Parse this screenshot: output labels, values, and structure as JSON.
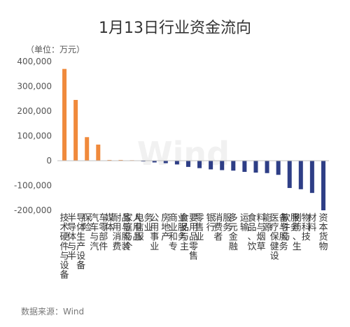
{
  "chart_data": {
    "type": "bar",
    "title": "1月13日行业资金流向",
    "unit_label": "（单位：万元）",
    "source": "数据来源：Wind",
    "watermark": "Wind",
    "ylim": [
      -200000,
      400000
    ],
    "yticks": [
      "400,000",
      "300,000",
      "200,000",
      "100,000",
      "0",
      "-100,000",
      "-200,000"
    ],
    "ytick_values": [
      400000,
      300000,
      200000,
      100000,
      0,
      -100000,
      -200000
    ],
    "positive_color": "#F08A3C",
    "negative_color": "#2E3E86",
    "categories": [
      "技术硬件与设备",
      "半导体与半导体生产设备",
      "保险",
      "汽车与汽车零部件",
      "媒体",
      "耐用消费品与服装",
      "家庭与个人用品",
      "电信服务业",
      "公用事业",
      "房地产",
      "商业和专业服务",
      "食品与主要用品零售",
      "零售业",
      "银行",
      "消费者服务",
      "多元金融",
      "运输",
      "食品、饮料与烟草",
      "能源",
      "医疗保健设备与服务",
      "软件与服务",
      "制药、生物科技",
      "材料",
      "资本货物"
    ],
    "label_columns": [
      [
        "技术硬件与设备"
      ],
      [
        "半导体与半",
        "导体生产设备"
      ],
      [
        "保险"
      ],
      [
        "汽车与汽",
        "车零部件"
      ],
      [
        "媒体"
      ],
      [
        "耐用消费",
        "品与服装"
      ],
      [
        "家庭与个",
        "人用品"
      ],
      [
        "电信服",
        "务业"
      ],
      [
        "公用事业"
      ],
      [
        "房地产"
      ],
      [
        "商业和专",
        "业服务"
      ],
      [
        "食品与主",
        "要用品零售"
      ],
      [
        "零售业"
      ],
      [
        "银行"
      ],
      [
        "消费者",
        "服务"
      ],
      [
        "多元金融"
      ],
      [
        "运输"
      ],
      [
        "食品、饮",
        "料与烟草"
      ],
      [
        "能源"
      ],
      [
        "医疗保健设",
        "备与服务"
      ],
      [
        "软件与",
        "服务"
      ],
      [
        "制药、生",
        "物科技"
      ],
      [
        "材料"
      ],
      [
        "资本货物"
      ]
    ],
    "values": [
      370000,
      245000,
      95000,
      65000,
      3000,
      3000,
      2000,
      -3000,
      -7000,
      -10000,
      -15000,
      -25000,
      -30000,
      -35000,
      -38000,
      -40000,
      -45000,
      -48000,
      -50000,
      -57000,
      -110000,
      -115000,
      -130000,
      -200000
    ]
  }
}
